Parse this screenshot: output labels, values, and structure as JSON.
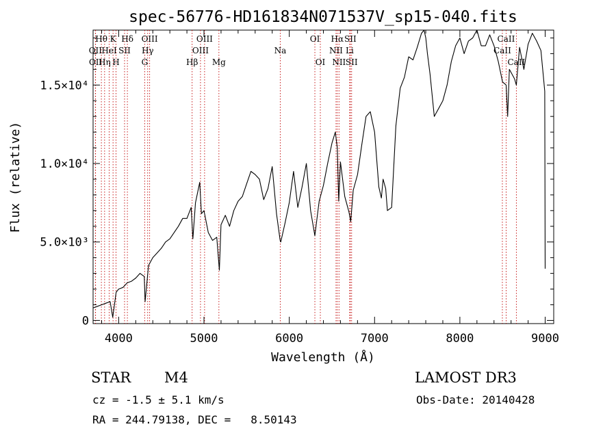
{
  "chart_data": {
    "type": "line",
    "title": "spec-56776-HD161834N071537V_sp15-040.fits",
    "xlabel": "Wavelength (Å)",
    "ylabel": "Flux (relative)",
    "xlim": [
      3700,
      9100
    ],
    "ylim": [
      -200,
      18500
    ],
    "x_ticks": [
      {
        "value": 4000,
        "label": "4000"
      },
      {
        "value": 5000,
        "label": "5000"
      },
      {
        "value": 6000,
        "label": "6000"
      },
      {
        "value": 7000,
        "label": "7000"
      },
      {
        "value": 8000,
        "label": "8000"
      },
      {
        "value": 9000,
        "label": "9000"
      }
    ],
    "y_ticks": [
      {
        "value": 0,
        "label": "0"
      },
      {
        "value": 5000,
        "label": "5.0×10³"
      },
      {
        "value": 10000,
        "label": "1.0×10⁴"
      },
      {
        "value": 15000,
        "label": "1.5×10⁴"
      }
    ],
    "series": [
      {
        "name": "flux",
        "x": [
          3700,
          3750,
          3800,
          3850,
          3900,
          3930,
          3950,
          3970,
          4000,
          4050,
          4100,
          4150,
          4200,
          4250,
          4300,
          4310,
          4350,
          4400,
          4450,
          4500,
          4550,
          4600,
          4650,
          4700,
          4750,
          4800,
          4850,
          4870,
          4900,
          4950,
          4970,
          5000,
          5050,
          5100,
          5150,
          5180,
          5200,
          5250,
          5300,
          5350,
          5400,
          5450,
          5500,
          5550,
          5600,
          5650,
          5700,
          5750,
          5800,
          5850,
          5893,
          5900,
          5950,
          6000,
          6050,
          6100,
          6150,
          6200,
          6250,
          6300,
          6350,
          6400,
          6450,
          6500,
          6540,
          6563,
          6580,
          6600,
          6650,
          6700,
          6720,
          6750,
          6800,
          6850,
          6900,
          6950,
          7000,
          7050,
          7080,
          7100,
          7130,
          7150,
          7200,
          7250,
          7300,
          7350,
          7400,
          7450,
          7500,
          7550,
          7580,
          7600,
          7620,
          7650,
          7700,
          7750,
          7800,
          7850,
          7900,
          7950,
          8000,
          8050,
          8100,
          8150,
          8200,
          8250,
          8300,
          8350,
          8400,
          8450,
          8500,
          8542,
          8560,
          8580,
          8600,
          8640,
          8662,
          8700,
          8750,
          8800,
          8850,
          8900,
          8950,
          8980,
          8995,
          9000
        ],
        "y": [
          800,
          900,
          1000,
          1100,
          1200,
          200,
          1000,
          1800,
          2000,
          2100,
          2400,
          2500,
          2700,
          3000,
          2800,
          1200,
          3500,
          4000,
          4300,
          4600,
          5000,
          5200,
          5600,
          6000,
          6500,
          6500,
          7200,
          5200,
          7500,
          8800,
          6800,
          7000,
          5600,
          5100,
          5300,
          3200,
          6100,
          6700,
          6000,
          7000,
          7600,
          7900,
          8700,
          9500,
          9300,
          9000,
          7700,
          8400,
          9800,
          6800,
          5100,
          5000,
          6200,
          7500,
          9500,
          7200,
          8500,
          10000,
          7000,
          5400,
          7600,
          8600,
          10000,
          11300,
          12000,
          11000,
          7600,
          10100,
          7900,
          6900,
          6300,
          8300,
          9300,
          11200,
          13000,
          13300,
          12000,
          8500,
          7800,
          9000,
          8400,
          7000,
          7200,
          12400,
          14800,
          15500,
          16800,
          16600,
          17400,
          18300,
          18500,
          18000,
          17000,
          15700,
          13000,
          13500,
          14000,
          15000,
          16500,
          17500,
          18000,
          17000,
          17800,
          18000,
          18600,
          17500,
          17500,
          18200,
          17500,
          16500,
          15200,
          15000,
          13000,
          16000,
          15800,
          15400,
          15000,
          17400,
          16000,
          17600,
          18300,
          17800,
          17200,
          15500,
          14600,
          3300
        ]
      }
    ],
    "spectral_lines": [
      {
        "label": "Hθ",
        "wl": 3797,
        "row": 0
      },
      {
        "label": "OII",
        "wl": 3727,
        "row": 1
      },
      {
        "label": "OII",
        "wl": 3729,
        "row": 2
      },
      {
        "label": "Hη",
        "wl": 3835,
        "row": 2
      },
      {
        "label": "K",
        "wl": 3934,
        "row": 0
      },
      {
        "label": "HeI",
        "wl": 3889,
        "row": 1
      },
      {
        "label": "SII",
        "wl": 4069,
        "row": 1
      },
      {
        "label": "H",
        "wl": 3969,
        "row": 2
      },
      {
        "label": "Hδ",
        "wl": 4102,
        "row": 0
      },
      {
        "label": "OIII",
        "wl": 4363,
        "row": 0
      },
      {
        "label": "Hγ",
        "wl": 4340,
        "row": 1
      },
      {
        "label": "G",
        "wl": 4305,
        "row": 2
      },
      {
        "label": "Hβ",
        "wl": 4861,
        "row": 2
      },
      {
        "label": "OIII",
        "wl": 5007,
        "row": 0
      },
      {
        "label": "OIII",
        "wl": 4959,
        "row": 1
      },
      {
        "label": "Mg",
        "wl": 5175,
        "row": 2
      },
      {
        "label": "Na",
        "wl": 5894,
        "row": 1
      },
      {
        "label": "OI",
        "wl": 6300,
        "row": 0
      },
      {
        "label": "OI",
        "wl": 6364,
        "row": 2
      },
      {
        "label": "Hα",
        "wl": 6563,
        "row": 0
      },
      {
        "label": "NII",
        "wl": 6548,
        "row": 1
      },
      {
        "label": "NII",
        "wl": 6583,
        "row": 2
      },
      {
        "label": "SII",
        "wl": 6716,
        "row": 0
      },
      {
        "label": "Li",
        "wl": 6708,
        "row": 1
      },
      {
        "label": "SII",
        "wl": 6731,
        "row": 2
      },
      {
        "label": "CaII",
        "wl": 8542,
        "row": 0
      },
      {
        "label": "CaII",
        "wl": 8498,
        "row": 1
      },
      {
        "label": "CaII",
        "wl": 8662,
        "row": 2
      }
    ]
  },
  "info": {
    "object_class": "STAR",
    "subclass": "M4",
    "survey": "LAMOST DR3",
    "redshift": "cz = -1.5 ± 5.1 km/s",
    "obs_date": "Obs-Date: 20140428",
    "coords": "RA = 244.79138, DEC =   8.50143"
  },
  "colors": {
    "spectrum": "#000000",
    "line_marker": "#c00000",
    "axis": "#000000",
    "background": "#ffffff"
  }
}
